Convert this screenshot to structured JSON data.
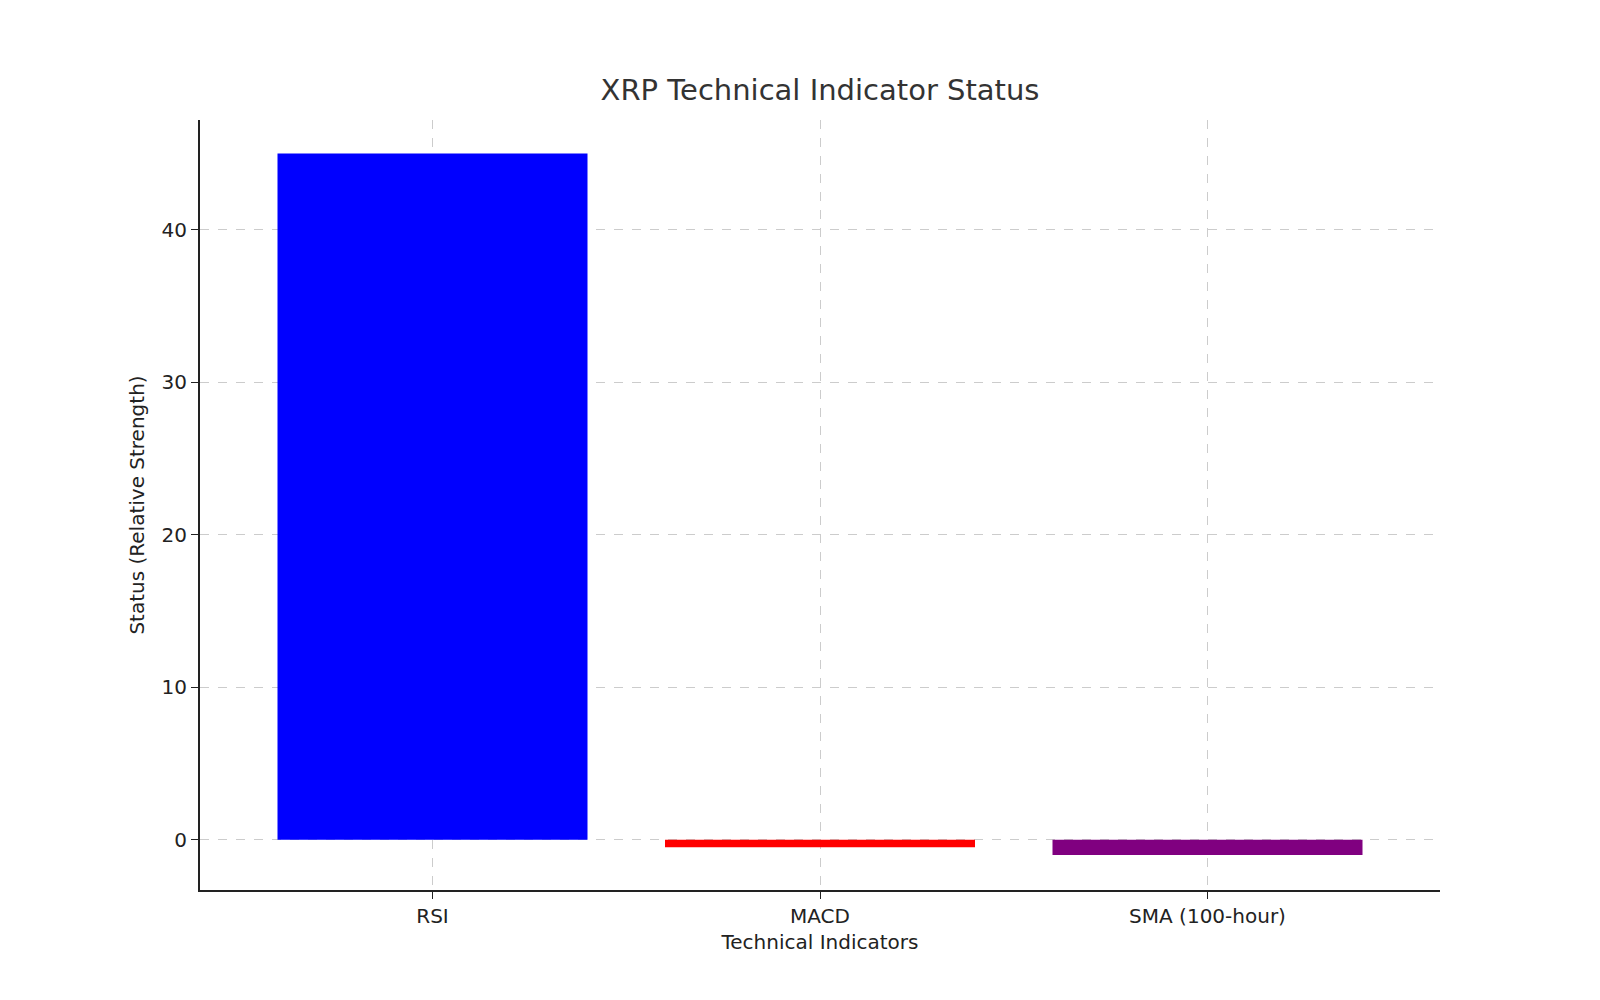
{
  "chart_data": {
    "type": "bar",
    "title": "XRP Technical Indicator Status",
    "x_label": "Technical Indicators",
    "y_label": "Status (Relative Strength)",
    "categories": [
      "RSI",
      "MACD",
      "SMA (100-hour)"
    ],
    "values": [
      45,
      -0.5,
      -1
    ],
    "colors": [
      "#0000ff",
      "#ff0000",
      "#800080"
    ],
    "ylim": [
      -3.3,
      47.2
    ],
    "yticks": [
      0,
      10,
      20,
      30,
      40
    ],
    "grid": true
  }
}
